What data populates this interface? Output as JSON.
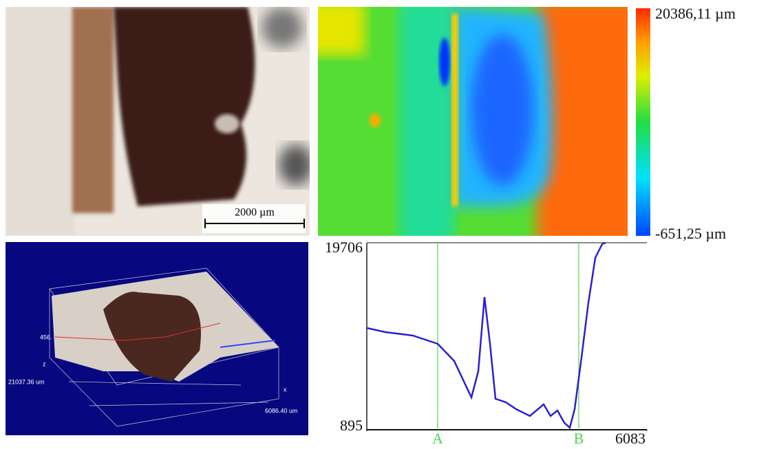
{
  "scale_bar": {
    "label": "2000 µm"
  },
  "colorbar": {
    "max_label": "20386,11 µm",
    "min_label": "-651,25 µm"
  },
  "view_3d": {
    "z_label": "z",
    "x_label": "x",
    "z_value_label": "456.",
    "depth_label": "21037.36 um",
    "width_label": "6086.40 um"
  },
  "chart_data": {
    "type": "line",
    "x": [
      0,
      404,
      998,
      1539,
      1898,
      2272,
      2421,
      2556,
      2676,
      2795,
      3019,
      3243,
      3542,
      3841,
      3991,
      4140,
      4290,
      4409,
      4514,
      4663,
      4813,
      4962,
      5112,
      5187
    ],
    "series": [
      {
        "color": "#2b1fd0",
        "values": [
          11131,
          10716,
          10370,
          9540,
          7811,
          4146,
          6774,
          14243,
          9540,
          4007,
          3661,
          2970,
          2278,
          3454,
          2278,
          2831,
          1587,
          1102,
          2970,
          8157,
          13690,
          18185,
          19568,
          19706
        ]
      }
    ],
    "xlim": [
      0,
      6083
    ],
    "xticks": [
      6083
    ],
    "ylim": [
      895,
      19706
    ],
    "yticks": [
      895,
      19706
    ],
    "markers": [
      {
        "label": "A",
        "x": 1539,
        "color": "#4fd34f"
      },
      {
        "label": "B",
        "x": 4603,
        "color": "#4fd34f"
      }
    ]
  }
}
